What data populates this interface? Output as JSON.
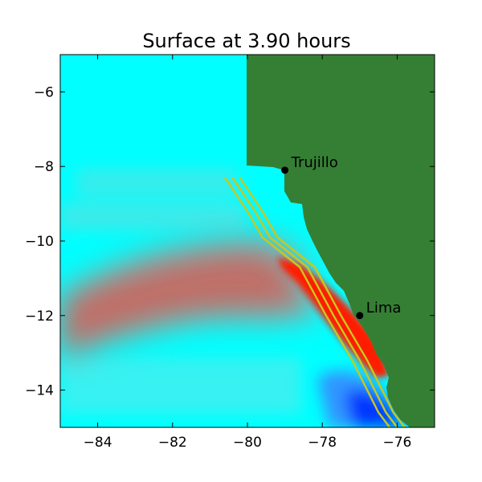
{
  "chart_data": {
    "type": "heatmap",
    "title": "Surface at 3.90 hours",
    "xlabel": "",
    "ylabel": "",
    "xlim": [
      -85,
      -75
    ],
    "ylim": [
      -15,
      -5
    ],
    "xticks": [
      -84,
      -82,
      -80,
      -78,
      -76
    ],
    "yticks": [
      -14,
      -12,
      -10,
      -8,
      -6
    ],
    "xtick_labels": [
      "−84",
      "−82",
      "−80",
      "−78",
      "−76"
    ],
    "ytick_labels": [
      "−14",
      "−12",
      "−10",
      "−8",
      "−6"
    ],
    "grid": false,
    "colors": {
      "ocean": "#00ffff",
      "land": "#357f35",
      "wave_high": "#ff1a00",
      "wave_plume": "#d85a50",
      "wave_low": "#0030ff",
      "fault_lines": "#c8c81e"
    },
    "cities": [
      {
        "name": "Trujillo",
        "lon": -79.0,
        "lat": -8.1
      },
      {
        "name": "Lima",
        "lon": -77.0,
        "lat": -12.0
      }
    ],
    "fault_lines": [
      {
        "points": [
          [
            -80.6,
            -8.3
          ],
          [
            -80.0,
            -9.2
          ],
          [
            -79.6,
            -9.9
          ],
          [
            -78.6,
            -10.7
          ],
          [
            -77.9,
            -12.0
          ],
          [
            -77.2,
            -13.2
          ],
          [
            -76.5,
            -14.6
          ],
          [
            -76.2,
            -15.0
          ]
        ]
      },
      {
        "points": [
          [
            -80.4,
            -8.3
          ],
          [
            -79.8,
            -9.2
          ],
          [
            -79.4,
            -9.9
          ],
          [
            -78.4,
            -10.7
          ],
          [
            -77.7,
            -12.0
          ],
          [
            -77.0,
            -13.2
          ],
          [
            -76.3,
            -14.6
          ],
          [
            -76.0,
            -15.0
          ]
        ]
      },
      {
        "points": [
          [
            -80.2,
            -8.3
          ],
          [
            -79.6,
            -9.2
          ],
          [
            -79.2,
            -9.9
          ],
          [
            -78.2,
            -10.7
          ],
          [
            -77.5,
            -12.0
          ],
          [
            -76.8,
            -13.2
          ],
          [
            -76.1,
            -14.6
          ],
          [
            -75.8,
            -15.0
          ]
        ]
      }
    ]
  }
}
